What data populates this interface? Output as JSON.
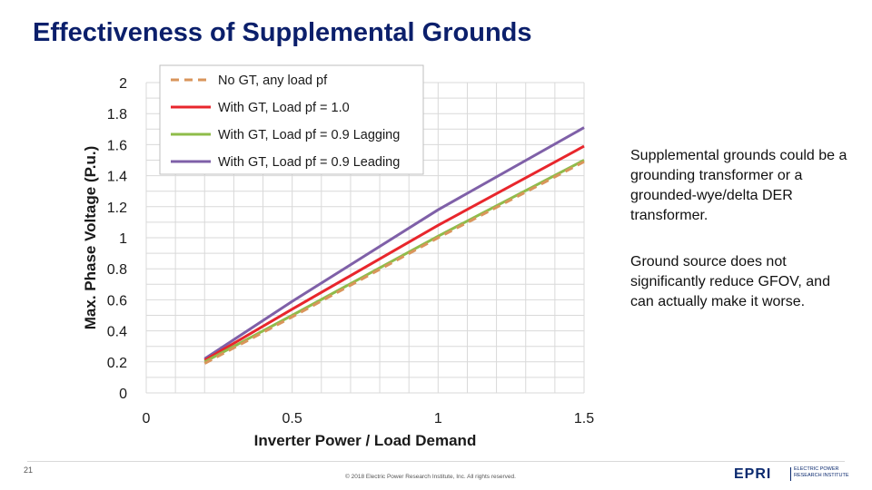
{
  "slide": {
    "title": "Effectiveness of Supplemental Grounds",
    "paragraph_1": "Supplemental grounds could be a grounding transformer or a grounded-wye/delta DER transformer.",
    "paragraph_2": "Ground source does not significantly reduce GFOV, and can actually make it worse.",
    "page_number": "21",
    "copyright": "© 2018 Electric Power Research Institute, Inc. All rights reserved.",
    "logo": {
      "mark": "EPRI",
      "line_1": "ELECTRIC POWER",
      "line_2": "RESEARCH INSTITUTE"
    }
  },
  "chart_data": {
    "type": "line",
    "title": "",
    "xlabel": "Inverter Power / Load Demand",
    "ylabel": "Max. Phase Voltage (P.u.)",
    "xlim": [
      0,
      1.5
    ],
    "ylim": [
      0,
      2
    ],
    "x_ticks": [
      "0",
      "0.5",
      "1",
      "1.5"
    ],
    "y_ticks": [
      "0",
      "0.2",
      "0.4",
      "0.6",
      "0.8",
      "1",
      "1.2",
      "1.4",
      "1.6",
      "1.8",
      "2"
    ],
    "grid": true,
    "legend_position": "top-left",
    "series": [
      {
        "name": "No GT, any load pf",
        "color": "#d9955b",
        "dashed": true,
        "x": [
          0.2,
          0.5,
          1.0,
          1.5
        ],
        "y": [
          0.19,
          0.49,
          1.0,
          1.49
        ]
      },
      {
        "name": "With GT, Load pf = 1.0",
        "color": "#e8262c",
        "dashed": false,
        "x": [
          0.2,
          0.5,
          1.0,
          1.5
        ],
        "y": [
          0.21,
          0.54,
          1.08,
          1.59
        ]
      },
      {
        "name": "With GT, Load pf = 0.9 Lagging",
        "color": "#8fbc4a",
        "dashed": false,
        "x": [
          0.2,
          0.5,
          1.0,
          1.5
        ],
        "y": [
          0.2,
          0.5,
          1.01,
          1.5
        ]
      },
      {
        "name": "With GT, Load pf = 0.9 Leading",
        "color": "#7f60a8",
        "dashed": false,
        "x": [
          0.2,
          0.5,
          1.0,
          1.5
        ],
        "y": [
          0.22,
          0.59,
          1.18,
          1.71
        ]
      }
    ]
  }
}
